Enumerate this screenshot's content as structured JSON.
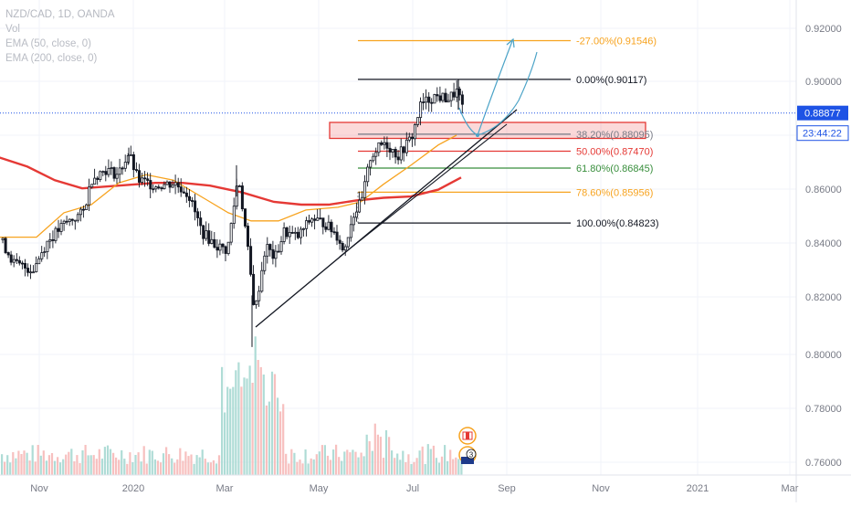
{
  "legend": {
    "symbol": "NZD/CAD, 1D, OANDA",
    "vol": "Vol",
    "ema50": "EMA (50, close, 0)",
    "ema200": "EMA (200, close, 0)"
  },
  "price_axis": {
    "current_price": "0.88877",
    "countdown": "23:44:22"
  },
  "chart_data": {
    "type": "candlestick",
    "symbol": "NZD/CAD",
    "interval": "1D",
    "source": "OANDA",
    "ylim": [
      0.752,
      0.928
    ],
    "y_ticks": [
      "0.92000",
      "0.90000",
      "0.88000",
      "0.86000",
      "0.84000",
      "0.82000",
      "0.80000",
      "0.78000",
      "0.76000"
    ],
    "x_ticks": [
      "Nov",
      "2020",
      "Mar",
      "May",
      "Jul",
      "Sep",
      "Nov",
      "2021",
      "Mar"
    ],
    "current_price": 0.88877,
    "colors": {
      "up": "#26a69a",
      "down": "#ef5350",
      "candle": "#131722",
      "ema50": "#f7a31f",
      "ema200": "#e53935",
      "fib_black": "#131722",
      "fib_orange": "#f7a31f",
      "fib_red": "#e53935",
      "fib_green": "#388e3c",
      "fib_gray": "#787b86",
      "projection": "#4ba3c7",
      "price_line": "#1e53e5"
    },
    "fib_levels": [
      {
        "label": "-27.00%(0.91546)",
        "value": 0.91546,
        "color": "#f7a31f"
      },
      {
        "label": "0.00%(0.90117)",
        "value": 0.90117,
        "color": "#131722"
      },
      {
        "label": "38.20%(0.88095)",
        "value": 0.88095,
        "color": "#787b86"
      },
      {
        "label": "50.00%(0.87470)",
        "value": 0.8747,
        "color": "#e53935"
      },
      {
        "label": "61.80%(0.86845)",
        "value": 0.86845,
        "color": "#388e3c"
      },
      {
        "label": "78.60%(0.85956)",
        "value": 0.85956,
        "color": "#f7a31f"
      },
      {
        "label": "100.00%(0.84823)",
        "value": 0.84823,
        "color": "#131722"
      }
    ],
    "support_zone": [
      0.8794,
      0.8853
    ],
    "ema50_points": [
      [
        -2,
        0.843
      ],
      [
        40,
        0.843
      ],
      [
        70,
        0.852
      ],
      [
        100,
        0.855
      ],
      [
        130,
        0.863
      ],
      [
        160,
        0.866
      ],
      [
        190,
        0.864
      ],
      [
        225,
        0.857
      ],
      [
        250,
        0.852
      ],
      [
        275,
        0.849
      ],
      [
        305,
        0.849
      ],
      [
        335,
        0.853
      ],
      [
        370,
        0.854
      ],
      [
        395,
        0.856
      ],
      [
        420,
        0.8625
      ],
      [
        450,
        0.8695
      ],
      [
        480,
        0.877
      ],
      [
        500,
        0.8806
      ]
    ],
    "ema200_points": [
      [
        -2,
        0.8725
      ],
      [
        30,
        0.869
      ],
      [
        60,
        0.864
      ],
      [
        90,
        0.861
      ],
      [
        130,
        0.862
      ],
      [
        170,
        0.863
      ],
      [
        200,
        0.863
      ],
      [
        230,
        0.862
      ],
      [
        265,
        0.8595
      ],
      [
        300,
        0.856
      ],
      [
        330,
        0.855
      ],
      [
        360,
        0.855
      ],
      [
        390,
        0.8565
      ],
      [
        420,
        0.8575
      ],
      [
        450,
        0.858
      ],
      [
        480,
        0.8605
      ],
      [
        505,
        0.865
      ]
    ]
  }
}
